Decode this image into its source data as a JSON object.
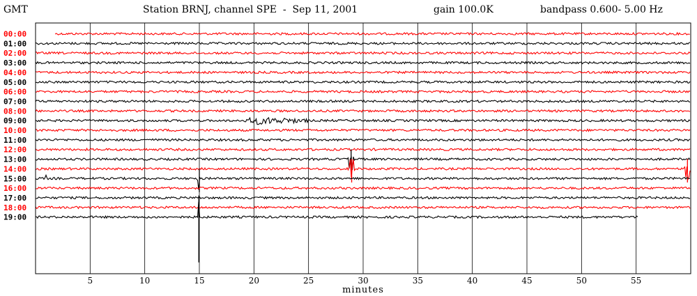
{
  "header": {
    "timezone_label": "GMT",
    "station_text": "Station BRNJ, channel SPE  -  Sep 11, 2001",
    "gain_text": "gain 100.0K",
    "bandpass_text": "bandpass 0.600- 5.00 Hz"
  },
  "chart_data": {
    "type": "line",
    "title": "Station BRNJ, channel SPE  -  Sep 11, 2001",
    "xlabel": "minutes",
    "ylabel": "GMT",
    "xlim": [
      0,
      60
    ],
    "x_ticks": [
      5,
      10,
      15,
      20,
      25,
      30,
      35,
      40,
      45,
      50,
      55
    ],
    "vertical_gridlines_every_minutes": 5,
    "row_colors": {
      "even": "#ff0000",
      "odd": "#000000"
    },
    "hour_rows": [
      "00:00",
      "01:00",
      "02:00",
      "03:00",
      "04:00",
      "05:00",
      "06:00",
      "07:00",
      "08:00",
      "09:00",
      "10:00",
      "11:00",
      "12:00",
      "13:00",
      "14:00",
      "15:00",
      "16:00",
      "17:00",
      "18:00",
      "19:00"
    ],
    "trace_windows": [
      {
        "row": "00:00",
        "start_minute": 1.8,
        "end_minute": 60
      },
      {
        "row": "19:00",
        "start_minute": 0,
        "end_minute": 55.2
      }
    ],
    "events": [
      {
        "row": "09:00",
        "start_minute": 19.1,
        "end_minute": 25.0,
        "amplitude": "moderate"
      },
      {
        "row": "13:00",
        "start_minute": 28.6,
        "end_minute": 29.2,
        "amplitude": "large"
      },
      {
        "row": "14:00",
        "start_minute": 28.6,
        "end_minute": 29.3,
        "amplitude": "large"
      },
      {
        "row": "15:00",
        "start_minute": 14.8,
        "end_minute": 15.2,
        "amplitude": "large"
      },
      {
        "row": "15:00",
        "start_minute": 0.8,
        "end_minute": 1.1,
        "amplitude": "small"
      },
      {
        "row": "14:00",
        "start_minute": 59.4,
        "end_minute": 60,
        "amplitude": "large"
      },
      {
        "row": "19:00",
        "start_minute": 14.9,
        "end_minute": 15.0,
        "amplitude": "spike"
      }
    ]
  }
}
